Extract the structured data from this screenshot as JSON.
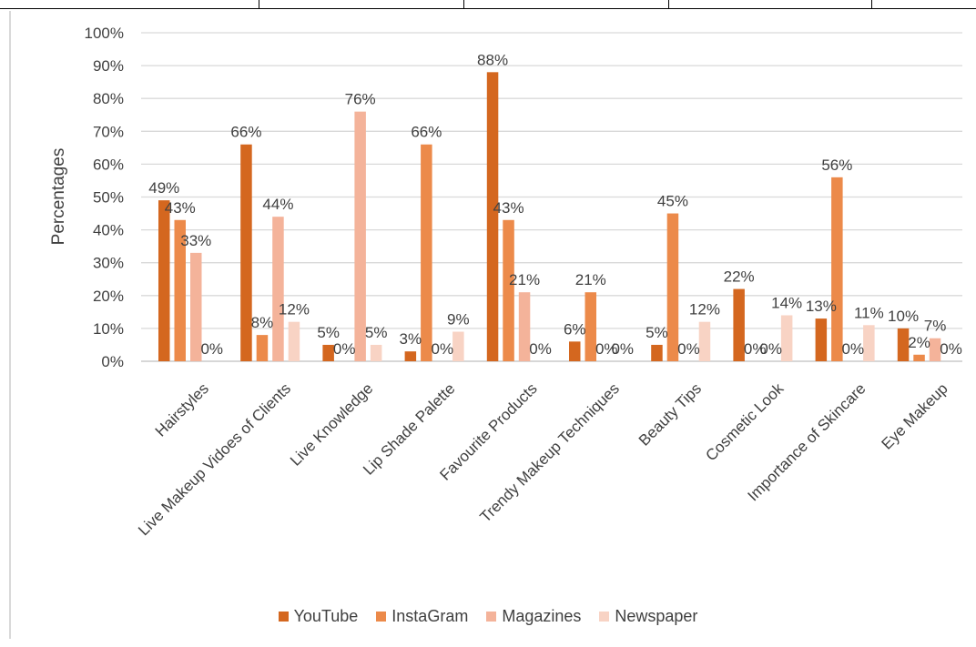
{
  "chart_data": {
    "type": "bar",
    "ylabel": "Percentages",
    "ylim": [
      0,
      100
    ],
    "yticks": [
      "0%",
      "10%",
      "20%",
      "30%",
      "40%",
      "50%",
      "60%",
      "70%",
      "80%",
      "90%",
      "100%"
    ],
    "grid": true,
    "legend_position": "bottom",
    "categories": [
      "Hairstyles",
      "Live Makeup Vidoes of Clients",
      "Live Knowledge",
      "Lip Shade Palette",
      "Favourite Products",
      "Trendy Makeup Techniques",
      "Beauty Tips",
      "Cosmetic Look",
      "Importance of Skincare",
      "Eye Makeup"
    ],
    "series": [
      {
        "name": "YouTube",
        "color": "#d4671f",
        "values": [
          49,
          66,
          5,
          3,
          88,
          6,
          5,
          22,
          13,
          10
        ],
        "labels": [
          "49%",
          "66%",
          "5%",
          "3%",
          "88%",
          "6%",
          "5%",
          "22%",
          "13%",
          "10%"
        ]
      },
      {
        "name": "InstaGram",
        "color": "#ec8a4a",
        "values": [
          43,
          8,
          0,
          66,
          43,
          21,
          45,
          0,
          56,
          2
        ],
        "labels": [
          "43%",
          "8%",
          "0%",
          "66%",
          "43%",
          "21%",
          "45%",
          "0%",
          "56%",
          "2%"
        ]
      },
      {
        "name": "Magazines",
        "color": "#f4b39a",
        "values": [
          33,
          44,
          76,
          0,
          21,
          0,
          0,
          0,
          0,
          7
        ],
        "labels": [
          "33%",
          "44%",
          "76%",
          "0%",
          "21%",
          "0%",
          "0%",
          "0%",
          "0%",
          "7%"
        ]
      },
      {
        "name": "Newspaper",
        "color": "#f8d3c4",
        "values": [
          0,
          12,
          5,
          9,
          0,
          0,
          12,
          14,
          11,
          0
        ],
        "labels": [
          "0%",
          "12%",
          "5%",
          "9%",
          "0%",
          "0%",
          "12%",
          "14%",
          "11%",
          "0%"
        ]
      }
    ]
  }
}
